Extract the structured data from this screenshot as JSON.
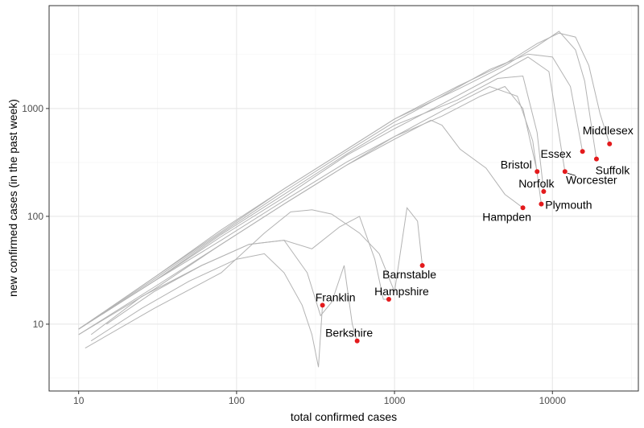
{
  "chart_data": {
    "type": "line",
    "title": "",
    "xlabel": "total confirmed cases",
    "ylabel": "new confirmed cases (in the past week)",
    "x_scale": "log10",
    "y_scale": "log10",
    "xlim": [
      6.5,
      35000
    ],
    "ylim": [
      2.4,
      9000
    ],
    "x_ticks": [
      10,
      100,
      1000,
      10000
    ],
    "x_tick_labels": [
      "10",
      "100",
      "1000",
      "10000"
    ],
    "y_ticks": [
      10,
      100,
      1000
    ],
    "y_tick_labels": [
      "10",
      "100",
      "1000"
    ],
    "grid": true,
    "legend": "none",
    "colors": {
      "line": "#b3b3b3",
      "point": "#e31a1c",
      "panel_border": "#333333",
      "grid_major": "#e5e5e5",
      "grid_minor": "#f2f2f2"
    },
    "series": [
      {
        "name": "Middlesex",
        "x": [
          10,
          30,
          80,
          200,
          500,
          1000,
          2500,
          5000,
          8000,
          11000,
          14000,
          17000,
          20000,
          23000
        ],
        "y": [
          9,
          27,
          75,
          180,
          420,
          800,
          1600,
          2600,
          4000,
          5000,
          4600,
          2500,
          900,
          470
        ],
        "end": [
          23000,
          470
        ]
      },
      {
        "name": "Suffolk",
        "x": [
          10,
          30,
          80,
          200,
          500,
          1000,
          2500,
          5000,
          8000,
          11000,
          14000,
          16000,
          19000
        ],
        "y": [
          9,
          27,
          72,
          180,
          420,
          800,
          1500,
          2500,
          3800,
          5200,
          3500,
          1800,
          340
        ],
        "end": [
          19000,
          340
        ]
      },
      {
        "name": "Essex",
        "x": [
          10,
          30,
          80,
          200,
          500,
          1000,
          2000,
          4000,
          7000,
          10000,
          13000,
          15500
        ],
        "y": [
          9,
          26,
          70,
          170,
          400,
          750,
          1300,
          2300,
          3200,
          3000,
          1600,
          400
        ],
        "end": [
          15500,
          400
        ]
      },
      {
        "name": "Worcester",
        "x": [
          10,
          30,
          80,
          200,
          500,
          1000,
          2000,
          4000,
          7000,
          9500,
          12000
        ],
        "y": [
          9,
          25,
          65,
          150,
          370,
          650,
          1100,
          1900,
          3000,
          2200,
          260
        ],
        "end": [
          12000,
          260
        ]
      },
      {
        "name": "Bristol",
        "x": [
          10,
          30,
          80,
          200,
          500,
          1000,
          2000,
          3500,
          5000,
          6500,
          8000
        ],
        "y": [
          9,
          25,
          60,
          140,
          320,
          550,
          850,
          1300,
          1600,
          1000,
          260
        ],
        "end": [
          8000,
          260
        ]
      },
      {
        "name": "Norfolk",
        "x": [
          10,
          30,
          80,
          200,
          500,
          1000,
          2500,
          4500,
          6500,
          8000,
          8800
        ],
        "y": [
          9,
          25,
          68,
          160,
          380,
          700,
          1200,
          1900,
          2000,
          600,
          170
        ],
        "end": [
          8800,
          170
        ]
      },
      {
        "name": "Plymouth",
        "x": [
          10,
          30,
          80,
          200,
          500,
          1000,
          2000,
          4000,
          6000,
          7500,
          8500
        ],
        "y": [
          8,
          22,
          55,
          130,
          300,
          550,
          950,
          1600,
          1300,
          500,
          130
        ],
        "end": [
          8500,
          130
        ]
      },
      {
        "name": "Hampden",
        "x": [
          10,
          30,
          80,
          200,
          500,
          1000,
          1700,
          2000,
          2600,
          3800,
          5000,
          6500
        ],
        "y": [
          8,
          21,
          55,
          130,
          300,
          520,
          780,
          700,
          420,
          280,
          160,
          120
        ],
        "end": [
          6500,
          120
        ]
      },
      {
        "name": "Barnstable",
        "x": [
          11,
          30,
          80,
          150,
          220,
          300,
          400,
          600,
          800,
          1000,
          1200,
          1400,
          1500
        ],
        "y": [
          6,
          14,
          30,
          70,
          110,
          115,
          105,
          70,
          45,
          20,
          120,
          90,
          35
        ],
        "end": [
          1500,
          35
        ]
      },
      {
        "name": "Hampshire",
        "x": [
          12,
          25,
          60,
          120,
          200,
          300,
          450,
          600,
          750,
          850,
          920
        ],
        "y": [
          8,
          18,
          35,
          55,
          60,
          50,
          80,
          100,
          40,
          17,
          17
        ],
        "end": [
          920,
          17
        ]
      },
      {
        "name": "Franklin",
        "x": [
          12,
          25,
          50,
          100,
          150,
          200,
          260,
          300,
          330,
          350
        ],
        "y": [
          7,
          14,
          25,
          40,
          45,
          30,
          15,
          8,
          4,
          15
        ],
        "end": [
          350,
          15
        ]
      },
      {
        "name": "Berkshire",
        "x": [
          15,
          30,
          60,
          120,
          200,
          280,
          340,
          400,
          480,
          540,
          580
        ],
        "y": [
          10,
          20,
          35,
          55,
          60,
          30,
          12,
          16,
          35,
          10,
          7
        ],
        "end": [
          580,
          7
        ]
      }
    ],
    "annotations": [
      {
        "text": "Middlesex",
        "series": "Middlesex"
      },
      {
        "text": "Suffolk",
        "series": "Suffolk"
      },
      {
        "text": "Essex",
        "series": "Essex"
      },
      {
        "text": "Worcester",
        "series": "Worcester"
      },
      {
        "text": "Bristol",
        "series": "Bristol"
      },
      {
        "text": "Norfolk",
        "series": "Norfolk"
      },
      {
        "text": "Plymouth",
        "series": "Plymouth"
      },
      {
        "text": "Hampden",
        "series": "Hampden"
      },
      {
        "text": "Barnstable",
        "series": "Barnstable"
      },
      {
        "text": "Hampshire",
        "series": "Hampshire"
      },
      {
        "text": "Franklin",
        "series": "Franklin"
      },
      {
        "text": "Berkshire",
        "series": "Berkshire"
      }
    ]
  }
}
